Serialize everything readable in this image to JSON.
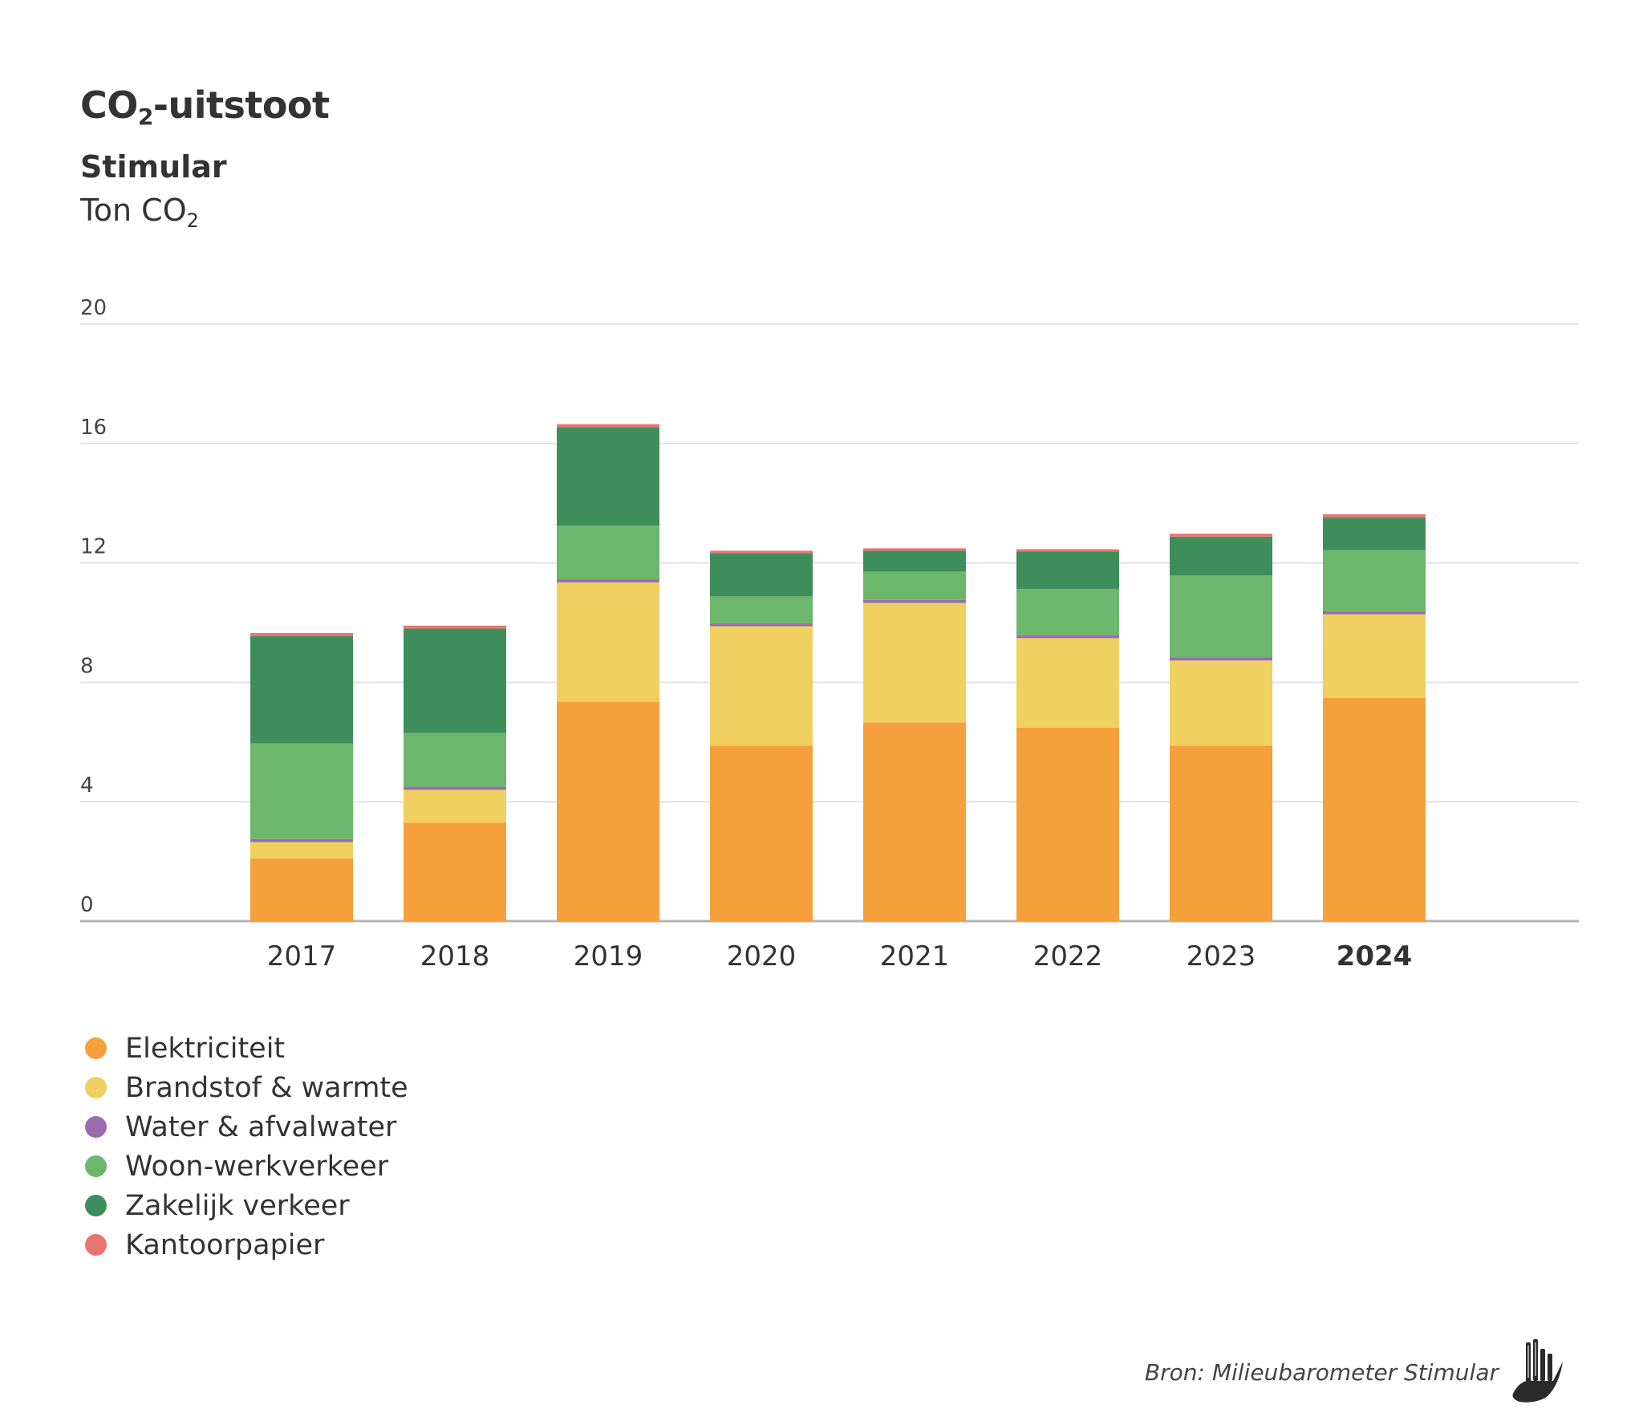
{
  "header": {
    "title_main": "CO",
    "title_sub": "2",
    "title_rest": "-uitstoot",
    "subtitle": "Stimular",
    "unit_main": "Ton CO",
    "unit_sub": "2"
  },
  "footer": {
    "source": "Bron: Milieubarometer Stimular",
    "logo_icon": "stimular-hand-logo-icon"
  },
  "chart_data": {
    "type": "bar",
    "stacked": true,
    "title": "CO2-uitstoot",
    "subtitle": "Stimular",
    "ylabel": "Ton CO2",
    "xlabel": "",
    "categories": [
      "2017",
      "2018",
      "2019",
      "2020",
      "2021",
      "2022",
      "2023",
      "2024"
    ],
    "highlight_category": "2024",
    "ylim": [
      0,
      20
    ],
    "yticks": [
      0,
      4,
      8,
      12,
      16,
      20
    ],
    "grid": true,
    "legend_position": "bottom-left",
    "series": [
      {
        "name": "Elektriciteit",
        "color": "#F5A03A",
        "values": [
          2.1,
          3.3,
          7.35,
          5.88,
          6.66,
          6.48,
          5.88,
          7.48
        ]
      },
      {
        "name": "Brandstof & warmte",
        "color": "#F0D060",
        "values": [
          0.55,
          1.1,
          4.0,
          4.0,
          4.0,
          3.0,
          2.85,
          2.8
        ]
      },
      {
        "name": "Water & afvalwater",
        "color": "#9B6BB0",
        "values": [
          0.1,
          0.1,
          0.1,
          0.1,
          0.1,
          0.1,
          0.1,
          0.1
        ]
      },
      {
        "name": "Woon-werkverkeer",
        "color": "#6DB76D",
        "values": [
          3.2,
          1.8,
          1.8,
          0.9,
          0.95,
          1.55,
          2.75,
          2.05
        ]
      },
      {
        "name": "Zakelijk verkeer",
        "color": "#3E8E5C",
        "values": [
          3.6,
          3.5,
          3.3,
          1.45,
          0.7,
          1.25,
          1.3,
          1.1
        ]
      },
      {
        "name": "Kantoorpapier",
        "color": "#E87572",
        "values": [
          0.1,
          0.1,
          0.1,
          0.08,
          0.08,
          0.08,
          0.1,
          0.1
        ]
      }
    ]
  }
}
